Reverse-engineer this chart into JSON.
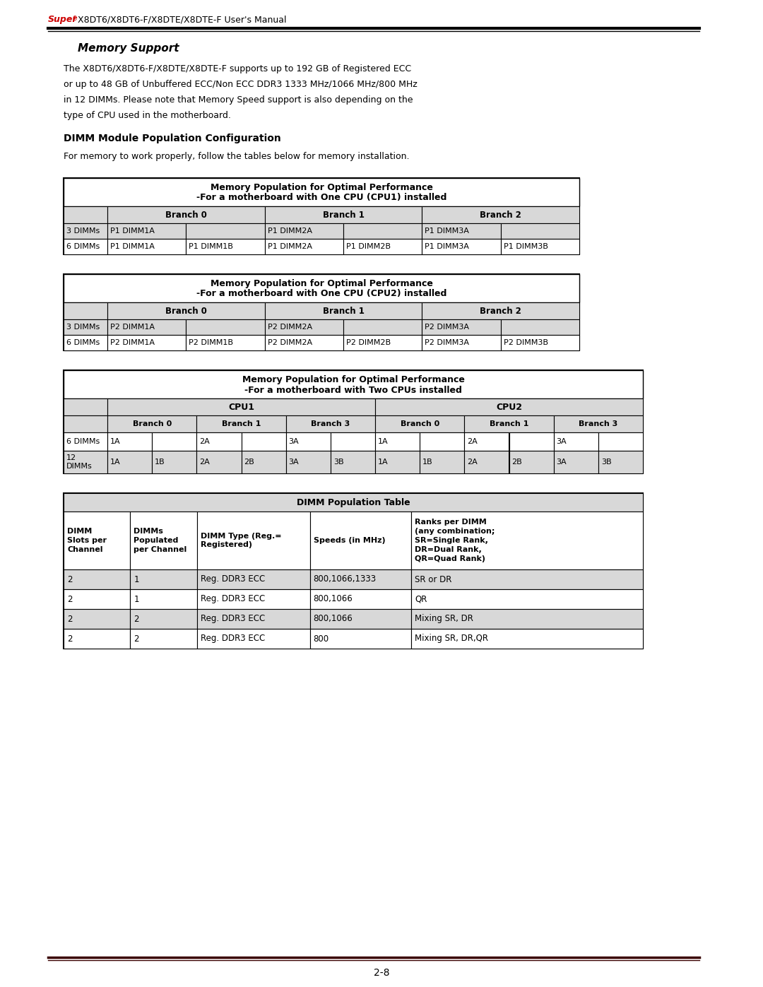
{
  "page_bg": "#ffffff",
  "header_text": "X8DT6/X8DT6-F/X8DTE/X8DTE-F User's Manual",
  "super_text": "Super",
  "super_color": "#cc0000",
  "section_title": "Memory Support",
  "para1_lines": [
    "The X8DT6/X8DT6-F/X8DTE/X8DTE-F supports up to 192 GB of Registered ECC",
    "or up to 48 GB of Unbuffered ECC/Non ECC DDR3 1333 MHz/1066 MHz/800 MHz",
    "in 12 DIMMs. Please note that Memory Speed support is also depending on the",
    "type of CPU used in the motherboard."
  ],
  "section2_title": "DIMM Module Population Configuration",
  "intro_text": "For memory to work properly, follow the tables below for memory installation.",
  "table1_title1": "Memory Population for Optimal Performance",
  "table1_title2": "-For a motherboard with One CPU (CPU1) installed",
  "table2_title1": "Memory Population for Optimal Performance",
  "table2_title2": "-For a motherboard with One CPU (CPU2) installed",
  "table3_title1": "Memory Population for Optimal Performance",
  "table3_title2": "-For a motherboard with Two CPUs installed",
  "table4_title": "DIMM Population Table",
  "footer_text": "2-8",
  "light_gray": "#d8d8d8",
  "white": "#ffffff",
  "black": "#000000"
}
